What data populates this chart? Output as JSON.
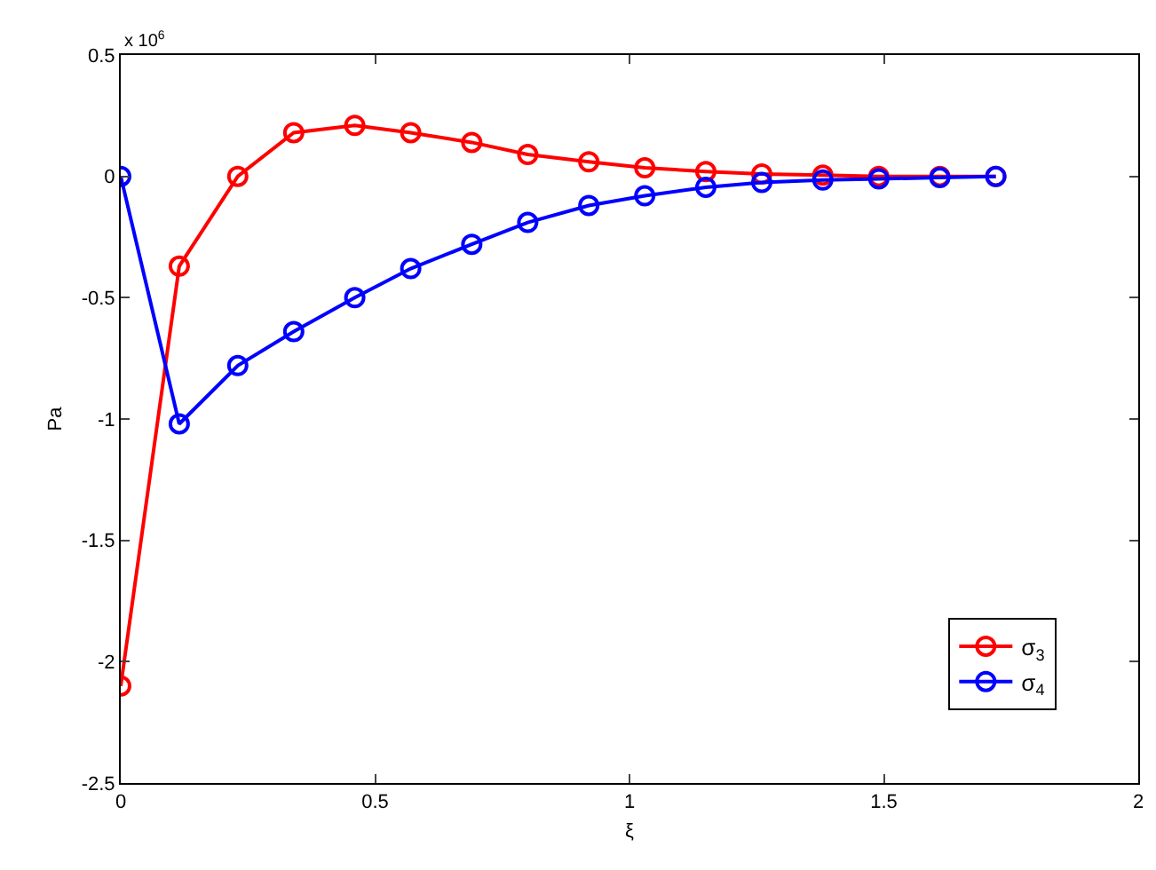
{
  "chart_data": {
    "type": "line",
    "xlabel": "ξ",
    "ylabel": "Pa",
    "annotations": [
      "x 10$^{6}$"
    ],
    "x": [
      0,
      0.115,
      0.23,
      0.34,
      0.46,
      0.57,
      0.69,
      0.8,
      0.92,
      1.03,
      1.15,
      1.26,
      1.38,
      1.49,
      1.61,
      1.72
    ],
    "series": [
      {
        "name": "σ$_{3}$",
        "color": "#ff0000",
        "values": [
          -2.1,
          -0.37,
          0.0,
          0.18,
          0.21,
          0.18,
          0.14,
          0.09,
          0.06,
          0.035,
          0.02,
          0.01,
          0.005,
          0,
          0,
          0
        ]
      },
      {
        "name": "σ$_{4}$",
        "color": "#0000ff",
        "values": [
          0,
          -1.02,
          -0.78,
          -0.64,
          -0.5,
          -0.38,
          -0.28,
          -0.19,
          -0.12,
          -0.08,
          -0.045,
          -0.025,
          -0.015,
          -0.01,
          -0.005,
          0
        ]
      }
    ],
    "xlim": [
      0,
      2
    ],
    "xticks": [
      0,
      0.5,
      1,
      1.5,
      2
    ],
    "ylim": [
      -2.5,
      0.5
    ],
    "yticks": [
      -2.5,
      -2,
      -1.5,
      -1,
      -0.5,
      0,
      0.5
    ],
    "grid": false,
    "legend": "bottom right",
    "marker": "circle",
    "line_style": "solid"
  }
}
